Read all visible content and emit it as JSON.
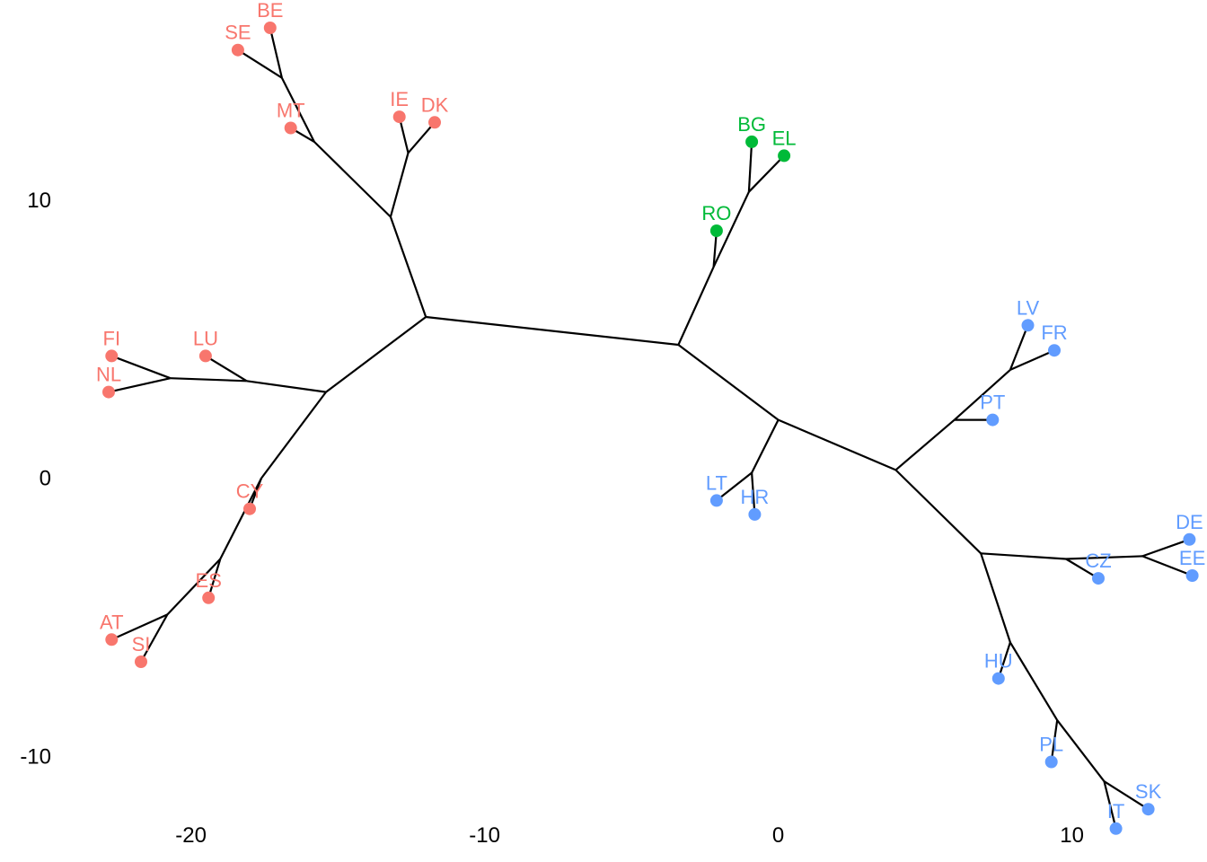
{
  "chart_data": {
    "type": "scatter",
    "title": "",
    "xlabel": "",
    "ylabel": "",
    "xlim": [
      -26.5,
      14.6
    ],
    "ylim": [
      -13.8,
      17.2
    ],
    "x_ticks": [
      {
        "value": -20,
        "label": "-20"
      },
      {
        "value": -10,
        "label": "-10"
      },
      {
        "value": 0,
        "label": "0"
      },
      {
        "value": 10,
        "label": "10"
      }
    ],
    "y_ticks": [
      {
        "value": 10,
        "label": "10"
      },
      {
        "value": 0,
        "label": "0"
      },
      {
        "value": -10,
        "label": "-10"
      }
    ],
    "grid": false,
    "legend": "none",
    "group_colors": {
      "1": "#f8766d",
      "2": "#00ba38",
      "3": "#619cff"
    },
    "edge_color": "#000000",
    "leaves": [
      {
        "label": "SE",
        "x": -18.4,
        "y": 15.4,
        "group": "1"
      },
      {
        "label": "BE",
        "x": -17.3,
        "y": 16.2,
        "group": "1"
      },
      {
        "label": "MT",
        "x": -16.6,
        "y": 12.6,
        "group": "1"
      },
      {
        "label": "IE",
        "x": -12.9,
        "y": 13.0,
        "group": "1"
      },
      {
        "label": "DK",
        "x": -11.7,
        "y": 12.8,
        "group": "1"
      },
      {
        "label": "FI",
        "x": -22.7,
        "y": 4.4,
        "group": "1"
      },
      {
        "label": "NL",
        "x": -22.8,
        "y": 3.1,
        "group": "1"
      },
      {
        "label": "LU",
        "x": -19.5,
        "y": 4.4,
        "group": "1"
      },
      {
        "label": "CY",
        "x": -18.0,
        "y": -1.1,
        "group": "1"
      },
      {
        "label": "ES",
        "x": -19.4,
        "y": -4.3,
        "group": "1"
      },
      {
        "label": "AT",
        "x": -22.7,
        "y": -5.8,
        "group": "1"
      },
      {
        "label": "SI",
        "x": -21.7,
        "y": -6.6,
        "group": "1"
      },
      {
        "label": "BG",
        "x": -0.9,
        "y": 12.1,
        "group": "2"
      },
      {
        "label": "EL",
        "x": 0.2,
        "y": 11.6,
        "group": "2"
      },
      {
        "label": "RO",
        "x": -2.1,
        "y": 8.9,
        "group": "2"
      },
      {
        "label": "LV",
        "x": 8.5,
        "y": 5.5,
        "group": "3"
      },
      {
        "label": "FR",
        "x": 9.4,
        "y": 4.6,
        "group": "3"
      },
      {
        "label": "PT",
        "x": 7.3,
        "y": 2.1,
        "group": "3"
      },
      {
        "label": "LT",
        "x": -2.1,
        "y": -0.8,
        "group": "3"
      },
      {
        "label": "HR",
        "x": -0.8,
        "y": -1.3,
        "group": "3"
      },
      {
        "label": "DE",
        "x": 14.0,
        "y": -2.2,
        "group": "3"
      },
      {
        "label": "EE",
        "x": 14.1,
        "y": -3.5,
        "group": "3"
      },
      {
        "label": "CZ",
        "x": 10.9,
        "y": -3.6,
        "group": "3"
      },
      {
        "label": "HU",
        "x": 7.5,
        "y": -7.2,
        "group": "3"
      },
      {
        "label": "PL",
        "x": 9.3,
        "y": -10.2,
        "group": "3"
      },
      {
        "label": "SK",
        "x": 12.6,
        "y": -11.9,
        "group": "3"
      },
      {
        "label": "IT",
        "x": 11.5,
        "y": -12.6,
        "group": "3"
      }
    ],
    "edges": [
      [
        [
          -12.0,
          5.8
        ],
        [
          -3.4,
          4.8
        ]
      ],
      [
        [
          -12.0,
          5.8
        ],
        [
          -13.2,
          9.4
        ]
      ],
      [
        [
          -12.0,
          5.8
        ],
        [
          -15.4,
          3.1
        ]
      ],
      [
        [
          -13.2,
          9.4
        ],
        [
          -15.8,
          12.1
        ]
      ],
      [
        [
          -15.8,
          12.1
        ],
        [
          -16.6,
          12.6
        ]
      ],
      [
        [
          -15.8,
          12.1
        ],
        [
          -16.9,
          14.4
        ]
      ],
      [
        [
          -16.9,
          14.4
        ],
        [
          -18.4,
          15.4
        ]
      ],
      [
        [
          -16.9,
          14.4
        ],
        [
          -17.3,
          16.2
        ]
      ],
      [
        [
          -13.2,
          9.4
        ],
        [
          -12.6,
          11.7
        ]
      ],
      [
        [
          -12.6,
          11.7
        ],
        [
          -12.9,
          13.0
        ]
      ],
      [
        [
          -12.6,
          11.7
        ],
        [
          -11.7,
          12.8
        ]
      ],
      [
        [
          -15.4,
          3.1
        ],
        [
          -18.1,
          3.5
        ]
      ],
      [
        [
          -18.1,
          3.5
        ],
        [
          -19.5,
          4.4
        ]
      ],
      [
        [
          -18.1,
          3.5
        ],
        [
          -20.7,
          3.6
        ]
      ],
      [
        [
          -20.7,
          3.6
        ],
        [
          -22.7,
          4.4
        ]
      ],
      [
        [
          -20.7,
          3.6
        ],
        [
          -22.8,
          3.1
        ]
      ],
      [
        [
          -15.4,
          3.1
        ],
        [
          -17.6,
          0.0
        ]
      ],
      [
        [
          -17.6,
          0.0
        ],
        [
          -18.0,
          -1.1
        ]
      ],
      [
        [
          -17.6,
          0.0
        ],
        [
          -19.0,
          -2.9
        ]
      ],
      [
        [
          -19.0,
          -2.9
        ],
        [
          -19.4,
          -4.3
        ]
      ],
      [
        [
          -19.0,
          -2.9
        ],
        [
          -20.8,
          -4.9
        ]
      ],
      [
        [
          -20.8,
          -4.9
        ],
        [
          -22.7,
          -5.8
        ]
      ],
      [
        [
          -20.8,
          -4.9
        ],
        [
          -21.7,
          -6.6
        ]
      ],
      [
        [
          -3.4,
          4.8
        ],
        [
          -2.2,
          7.6
        ]
      ],
      [
        [
          -2.2,
          7.6
        ],
        [
          -2.1,
          8.9
        ]
      ],
      [
        [
          -2.2,
          7.6
        ],
        [
          -1.0,
          10.3
        ]
      ],
      [
        [
          -1.0,
          10.3
        ],
        [
          -0.9,
          12.1
        ]
      ],
      [
        [
          -1.0,
          10.3
        ],
        [
          0.2,
          11.6
        ]
      ],
      [
        [
          -3.4,
          4.8
        ],
        [
          0.0,
          2.1
        ]
      ],
      [
        [
          0.0,
          2.1
        ],
        [
          -0.9,
          0.2
        ]
      ],
      [
        [
          -0.9,
          0.2
        ],
        [
          -2.1,
          -0.8
        ]
      ],
      [
        [
          -0.9,
          0.2
        ],
        [
          -0.8,
          -1.3
        ]
      ],
      [
        [
          0.0,
          2.1
        ],
        [
          4.0,
          0.3
        ]
      ],
      [
        [
          4.0,
          0.3
        ],
        [
          6.0,
          2.1
        ]
      ],
      [
        [
          6.0,
          2.1
        ],
        [
          7.3,
          2.1
        ]
      ],
      [
        [
          6.0,
          2.1
        ],
        [
          7.9,
          3.9
        ]
      ],
      [
        [
          7.9,
          3.9
        ],
        [
          8.5,
          5.5
        ]
      ],
      [
        [
          7.9,
          3.9
        ],
        [
          9.4,
          4.6
        ]
      ],
      [
        [
          4.0,
          0.3
        ],
        [
          6.9,
          -2.7
        ]
      ],
      [
        [
          6.9,
          -2.7
        ],
        [
          9.8,
          -2.9
        ]
      ],
      [
        [
          9.8,
          -2.9
        ],
        [
          10.9,
          -3.6
        ]
      ],
      [
        [
          9.8,
          -2.9
        ],
        [
          12.4,
          -2.8
        ]
      ],
      [
        [
          12.4,
          -2.8
        ],
        [
          14.0,
          -2.2
        ]
      ],
      [
        [
          12.4,
          -2.8
        ],
        [
          14.1,
          -3.5
        ]
      ],
      [
        [
          6.9,
          -2.7
        ],
        [
          7.9,
          -5.9
        ]
      ],
      [
        [
          7.9,
          -5.9
        ],
        [
          7.5,
          -7.2
        ]
      ],
      [
        [
          7.9,
          -5.9
        ],
        [
          9.5,
          -8.7
        ]
      ],
      [
        [
          9.5,
          -8.7
        ],
        [
          9.3,
          -10.2
        ]
      ],
      [
        [
          9.5,
          -8.7
        ],
        [
          11.1,
          -10.9
        ]
      ],
      [
        [
          11.1,
          -10.9
        ],
        [
          12.6,
          -11.9
        ]
      ],
      [
        [
          11.1,
          -10.9
        ],
        [
          11.5,
          -12.6
        ]
      ]
    ]
  }
}
